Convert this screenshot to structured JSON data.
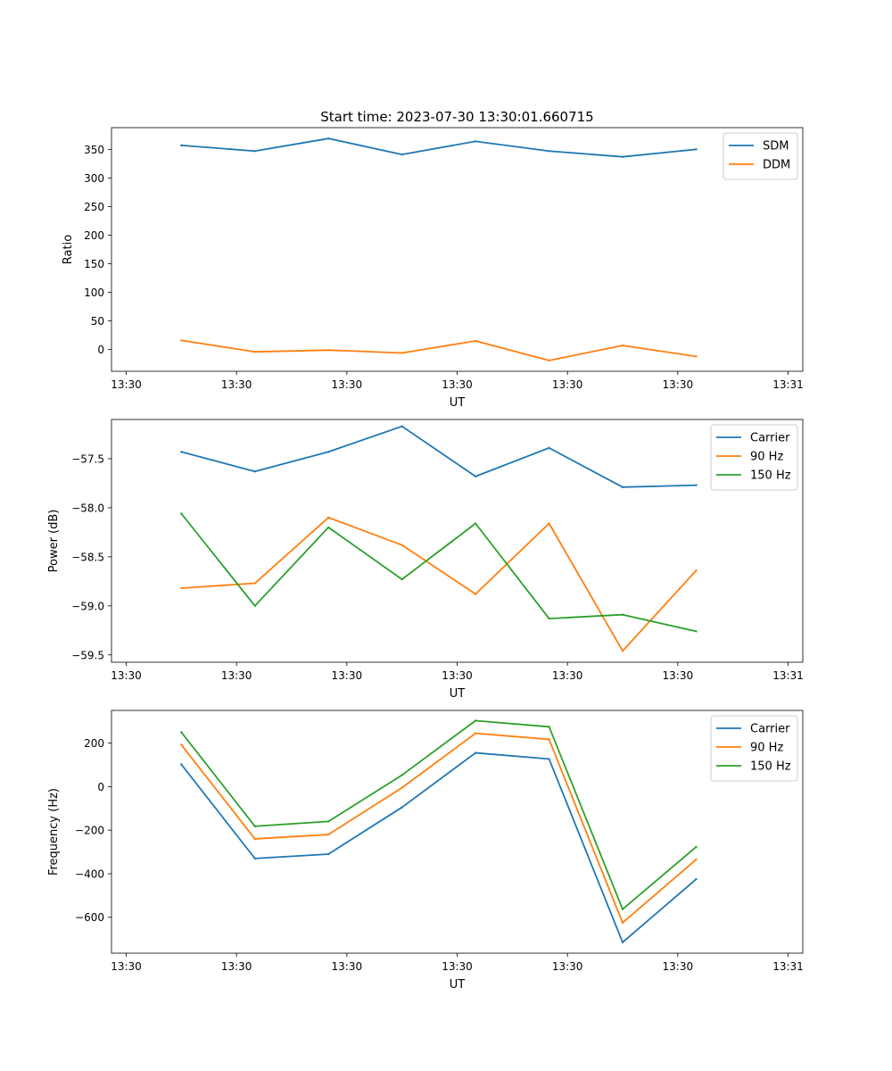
{
  "figure_title": "Start time: 2023-07-30 13:30:01.660715",
  "colors": {
    "blue": "#1f77b4",
    "orange": "#ff7f0e",
    "green": "#2ca02c"
  },
  "chart_data": [
    {
      "type": "line",
      "title": "Start time: 2023-07-30 13:30:01.660715",
      "xlabel": "UT",
      "ylabel": "Ratio",
      "xlim": [
        -0.1,
        4.6
      ],
      "ylim": [
        -38,
        388
      ],
      "x": [
        0.375,
        0.875,
        1.375,
        1.875,
        2.375,
        2.875,
        3.375,
        3.875
      ],
      "x_ticks": [
        0,
        0.75,
        1.5,
        2.25,
        3.0,
        3.75,
        4.5
      ],
      "x_tick_labels": [
        "13:30",
        "13:30",
        "13:30",
        "13:30",
        "13:30",
        "13:30",
        "13:31"
      ],
      "y_ticks": [
        0,
        50,
        100,
        150,
        200,
        250,
        300,
        350
      ],
      "y_tick_labels": [
        "0",
        "50",
        "100",
        "150",
        "200",
        "250",
        "300",
        "350"
      ],
      "legend_position": "top-right",
      "series": [
        {
          "name": "SDM",
          "color": "#1f77b4",
          "values": [
            357,
            347,
            369,
            341,
            364,
            347,
            337,
            350
          ]
        },
        {
          "name": "DDM",
          "color": "#ff7f0e",
          "values": [
            16,
            -4,
            -1,
            -6,
            15,
            -19,
            7,
            -12
          ]
        }
      ]
    },
    {
      "type": "line",
      "title": "",
      "xlabel": "UT",
      "ylabel": "Power (dB)",
      "xlim": [
        -0.1,
        4.6
      ],
      "ylim": [
        -59.575,
        -57.1
      ],
      "x": [
        0.375,
        0.875,
        1.375,
        1.875,
        2.375,
        2.875,
        3.375,
        3.875
      ],
      "x_ticks": [
        0,
        0.75,
        1.5,
        2.25,
        3.0,
        3.75,
        4.5
      ],
      "x_tick_labels": [
        "13:30",
        "13:30",
        "13:30",
        "13:30",
        "13:30",
        "13:30",
        "13:31"
      ],
      "y_ticks": [
        -59.5,
        -59.0,
        -58.5,
        -58.0,
        -57.5
      ],
      "y_tick_labels": [
        "−59.5",
        "−59.0",
        "−58.5",
        "−58.0",
        "−57.5"
      ],
      "legend_position": "top-right",
      "series": [
        {
          "name": "Carrier",
          "color": "#1f77b4",
          "values": [
            -57.43,
            -57.63,
            -57.43,
            -57.17,
            -57.68,
            -57.39,
            -57.79,
            -57.77
          ]
        },
        {
          "name": "90 Hz",
          "color": "#ff7f0e",
          "values": [
            -58.82,
            -58.77,
            -58.1,
            -58.38,
            -58.88,
            -58.16,
            -59.46,
            -58.64
          ]
        },
        {
          "name": "150 Hz",
          "color": "#2ca02c",
          "values": [
            -58.06,
            -59.0,
            -58.2,
            -58.73,
            -58.16,
            -59.13,
            -59.09,
            -59.26
          ]
        }
      ]
    },
    {
      "type": "line",
      "title": "",
      "xlabel": "UT",
      "ylabel": "Frequency (Hz)",
      "xlim": [
        -0.1,
        4.6
      ],
      "ylim": [
        -765,
        350
      ],
      "x": [
        0.375,
        0.875,
        1.375,
        1.875,
        2.375,
        2.875,
        3.375,
        3.875
      ],
      "x_ticks": [
        0,
        0.75,
        1.5,
        2.25,
        3.0,
        3.75,
        4.5
      ],
      "x_tick_labels": [
        "13:30",
        "13:30",
        "13:30",
        "13:30",
        "13:30",
        "13:30",
        "13:31"
      ],
      "y_ticks": [
        -600,
        -400,
        -200,
        0,
        200
      ],
      "y_tick_labels": [
        "−600",
        "−400",
        "−200",
        "0",
        "200"
      ],
      "legend_position": "top-right",
      "series": [
        {
          "name": "Carrier",
          "color": "#1f77b4",
          "values": [
            102,
            -330,
            -310,
            -95,
            155,
            127,
            -715,
            -425
          ]
        },
        {
          "name": "90 Hz",
          "color": "#ff7f0e",
          "values": [
            192,
            -240,
            -220,
            -5,
            245,
            217,
            -625,
            -335
          ]
        },
        {
          "name": "150 Hz",
          "color": "#2ca02c",
          "values": [
            250,
            -182,
            -160,
            53,
            303,
            275,
            -563,
            -277
          ]
        }
      ]
    }
  ]
}
